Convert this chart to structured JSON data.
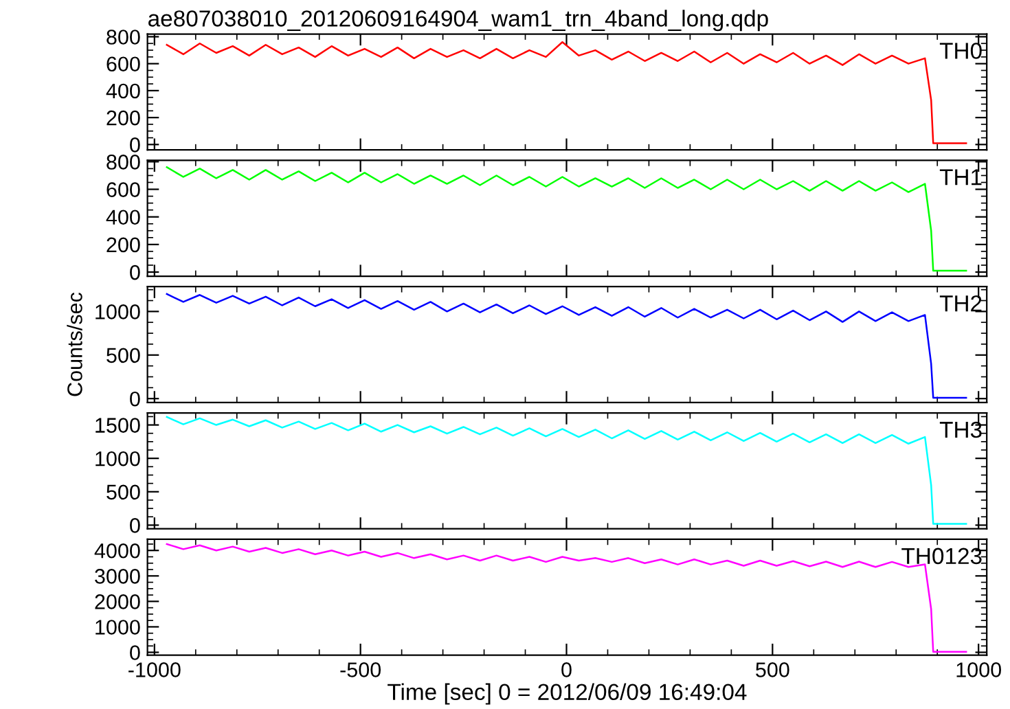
{
  "chart_data": [
    {
      "type": "line",
      "title": "ae807038010_20120609164904_wam1_trn_4band_long.qdp",
      "xlim": [
        -1017,
        1020
      ],
      "xticks": [
        -1000,
        -500,
        0,
        500,
        1000
      ],
      "ylim": [
        -40,
        820
      ],
      "yticks": [
        0,
        200,
        400,
        600,
        800
      ],
      "tick_labels": "y",
      "grid": false,
      "legend": false,
      "series": [
        {
          "name": "TH0",
          "color": "#ff0000",
          "x": [
            -970,
            -930,
            -890,
            -850,
            -810,
            -770,
            -730,
            -690,
            -650,
            -610,
            -570,
            -530,
            -490,
            -450,
            -410,
            -370,
            -330,
            -290,
            -250,
            -210,
            -170,
            -130,
            -90,
            -50,
            -10,
            30,
            70,
            110,
            150,
            190,
            230,
            270,
            310,
            350,
            390,
            430,
            470,
            510,
            550,
            590,
            630,
            670,
            710,
            750,
            790,
            830,
            870,
            885,
            890,
            970
          ],
          "values": [
            740,
            670,
            750,
            680,
            730,
            660,
            740,
            670,
            720,
            650,
            730,
            660,
            710,
            650,
            720,
            640,
            710,
            650,
            700,
            640,
            710,
            640,
            700,
            650,
            760,
            660,
            700,
            630,
            690,
            620,
            680,
            620,
            690,
            610,
            680,
            600,
            670,
            610,
            680,
            600,
            660,
            590,
            670,
            600,
            660,
            600,
            640,
            330,
            10,
            10
          ]
        }
      ]
    },
    {
      "type": "line",
      "xlim": [
        -1017,
        1020
      ],
      "xticks": [
        -1000,
        -500,
        0,
        500,
        1000
      ],
      "ylim": [
        -30,
        810
      ],
      "yticks": [
        0,
        200,
        400,
        600,
        800
      ],
      "tick_labels": "y",
      "grid": false,
      "legend": false,
      "series": [
        {
          "name": "TH1",
          "color": "#00ff00",
          "x": [
            -970,
            -930,
            -890,
            -850,
            -810,
            -770,
            -730,
            -690,
            -650,
            -610,
            -570,
            -530,
            -490,
            -450,
            -410,
            -370,
            -330,
            -290,
            -250,
            -210,
            -170,
            -130,
            -90,
            -50,
            -10,
            30,
            70,
            110,
            150,
            190,
            230,
            270,
            310,
            350,
            390,
            430,
            470,
            510,
            550,
            590,
            630,
            670,
            710,
            750,
            790,
            830,
            870,
            885,
            890,
            970
          ],
          "values": [
            760,
            690,
            750,
            680,
            740,
            670,
            740,
            670,
            730,
            660,
            720,
            650,
            720,
            650,
            710,
            640,
            700,
            640,
            700,
            630,
            700,
            630,
            690,
            620,
            690,
            620,
            680,
            620,
            680,
            610,
            680,
            610,
            670,
            600,
            670,
            600,
            670,
            600,
            660,
            590,
            660,
            590,
            660,
            590,
            650,
            580,
            640,
            300,
            10,
            10
          ]
        }
      ]
    },
    {
      "type": "line",
      "ylabel": "Counts/sec",
      "xlim": [
        -1017,
        1020
      ],
      "xticks": [
        -1000,
        -500,
        0,
        500,
        1000
      ],
      "ylim": [
        -45,
        1285
      ],
      "yticks": [
        0,
        500,
        1000
      ],
      "tick_labels": "y",
      "grid": false,
      "legend": false,
      "series": [
        {
          "name": "TH2",
          "color": "#0000ff",
          "x": [
            -970,
            -930,
            -890,
            -850,
            -810,
            -770,
            -730,
            -690,
            -650,
            -610,
            -570,
            -530,
            -490,
            -450,
            -410,
            -370,
            -330,
            -290,
            -250,
            -210,
            -170,
            -130,
            -90,
            -50,
            -10,
            30,
            70,
            110,
            150,
            190,
            230,
            270,
            310,
            350,
            390,
            430,
            470,
            510,
            550,
            590,
            630,
            670,
            710,
            750,
            790,
            830,
            870,
            885,
            890,
            970
          ],
          "values": [
            1200,
            1110,
            1190,
            1100,
            1180,
            1090,
            1170,
            1070,
            1160,
            1060,
            1140,
            1040,
            1130,
            1030,
            1120,
            1020,
            1110,
            1000,
            1090,
            990,
            1080,
            980,
            1070,
            970,
            1060,
            960,
            1050,
            950,
            1050,
            940,
            1040,
            930,
            1030,
            930,
            1020,
            920,
            1020,
            910,
            1010,
            900,
            1000,
            880,
            1000,
            890,
            990,
            890,
            960,
            400,
            10,
            10
          ]
        }
      ]
    },
    {
      "type": "line",
      "xlim": [
        -1017,
        1020
      ],
      "xticks": [
        -1000,
        -500,
        0,
        500,
        1000
      ],
      "ylim": [
        -55,
        1680
      ],
      "yticks": [
        0,
        500,
        1000,
        1500
      ],
      "tick_labels": "y",
      "grid": false,
      "legend": false,
      "series": [
        {
          "name": "TH3",
          "color": "#00ffff",
          "x": [
            -970,
            -930,
            -890,
            -850,
            -810,
            -770,
            -730,
            -690,
            -650,
            -610,
            -570,
            -530,
            -490,
            -450,
            -410,
            -370,
            -330,
            -290,
            -250,
            -210,
            -170,
            -130,
            -90,
            -50,
            -10,
            30,
            70,
            110,
            150,
            190,
            230,
            270,
            310,
            350,
            390,
            430,
            470,
            510,
            550,
            590,
            630,
            670,
            710,
            750,
            790,
            830,
            870,
            885,
            890,
            970
          ],
          "values": [
            1620,
            1510,
            1600,
            1500,
            1580,
            1480,
            1570,
            1460,
            1550,
            1440,
            1530,
            1420,
            1520,
            1400,
            1500,
            1390,
            1480,
            1370,
            1470,
            1360,
            1460,
            1340,
            1450,
            1330,
            1440,
            1320,
            1430,
            1300,
            1420,
            1290,
            1410,
            1280,
            1400,
            1270,
            1390,
            1260,
            1380,
            1250,
            1370,
            1240,
            1360,
            1230,
            1360,
            1230,
            1350,
            1220,
            1320,
            600,
            20,
            20
          ]
        }
      ]
    },
    {
      "type": "line",
      "xlabel": "Time [sec] 0 = 2012/06/09 16:49:04",
      "xlim": [
        -1017,
        1020
      ],
      "xticks": [
        -1000,
        -500,
        0,
        500,
        1000
      ],
      "ylim": [
        -110,
        4440
      ],
      "yticks": [
        0,
        1000,
        2000,
        3000,
        4000
      ],
      "grid": false,
      "legend": false,
      "series": [
        {
          "name": "TH0123",
          "color": "#ff00ff",
          "x": [
            -970,
            -930,
            -890,
            -850,
            -810,
            -770,
            -730,
            -690,
            -650,
            -610,
            -570,
            -530,
            -490,
            -450,
            -410,
            -370,
            -330,
            -290,
            -250,
            -210,
            -170,
            -130,
            -90,
            -50,
            -10,
            30,
            70,
            110,
            150,
            190,
            230,
            270,
            310,
            350,
            390,
            430,
            470,
            510,
            550,
            590,
            630,
            670,
            710,
            750,
            790,
            830,
            870,
            885,
            890,
            970
          ],
          "values": [
            4250,
            4050,
            4200,
            4000,
            4150,
            3950,
            4100,
            3900,
            4050,
            3850,
            4000,
            3800,
            3950,
            3750,
            3900,
            3700,
            3850,
            3650,
            3800,
            3600,
            3800,
            3600,
            3750,
            3550,
            3750,
            3600,
            3700,
            3550,
            3700,
            3500,
            3650,
            3450,
            3650,
            3450,
            3600,
            3400,
            3600,
            3400,
            3580,
            3380,
            3560,
            3350,
            3560,
            3350,
            3550,
            3350,
            3450,
            1700,
            20,
            20
          ]
        }
      ]
    }
  ]
}
